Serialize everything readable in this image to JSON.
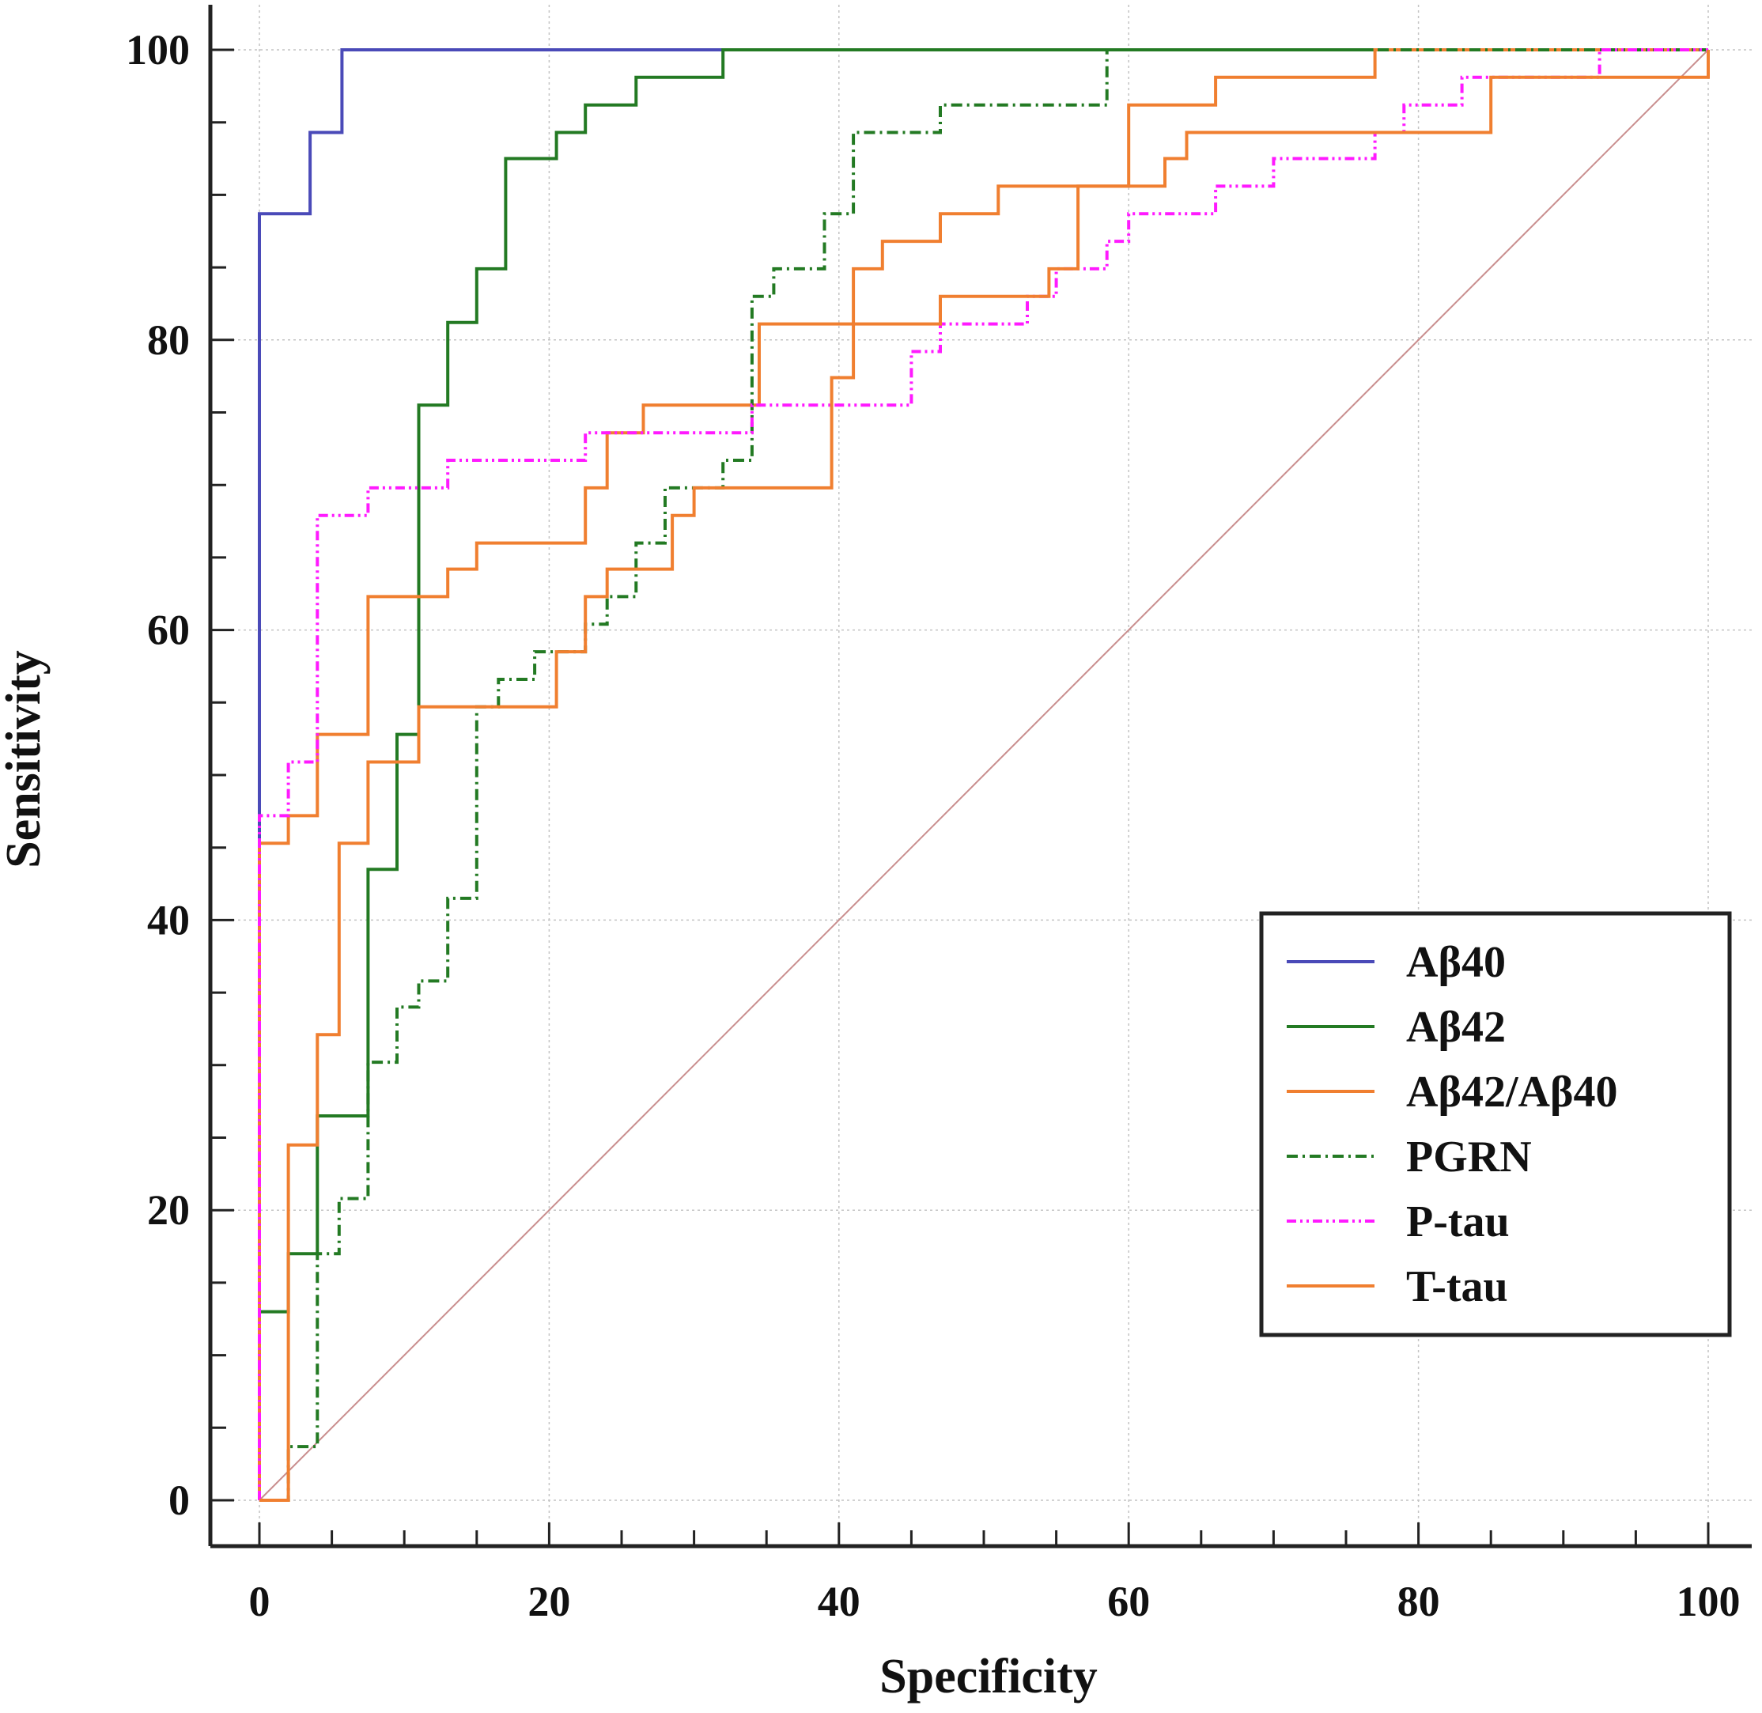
{
  "chart_data": {
    "type": "line",
    "title": "",
    "xlabel": "Specificity",
    "ylabel": "Sensitivity",
    "xlim": [
      0,
      100
    ],
    "ylim": [
      0,
      100
    ],
    "xticks": [
      0,
      20,
      40,
      60,
      80,
      100
    ],
    "yticks": [
      0,
      20,
      40,
      60,
      80,
      100
    ],
    "xtick_labels": [
      "0",
      "20",
      "40",
      "60",
      "80",
      "100"
    ],
    "ytick_labels": [
      "0",
      "20",
      "40",
      "60",
      "80",
      "100"
    ],
    "minor_step": 5,
    "grid": true,
    "legend_position": "bottom-right",
    "reference_line": {
      "name": "reference-diagonal",
      "x": [
        0,
        100
      ],
      "y": [
        0,
        100
      ],
      "color": "#c98e8e"
    },
    "series": [
      {
        "name": "Aβ40",
        "color": "#4a4ab8",
        "dash": "solid",
        "x": [
          0,
          0,
          3.5,
          3.5,
          5.7,
          5.7,
          100
        ],
        "y": [
          0,
          88.7,
          88.7,
          94.3,
          94.3,
          100,
          100
        ]
      },
      {
        "name": "Aβ42",
        "color": "#237a23",
        "dash": "solid",
        "x": [
          0,
          0,
          2,
          2,
          4,
          4,
          7.5,
          7.5,
          9.5,
          9.5,
          11,
          11,
          13,
          13,
          15,
          15,
          17,
          17,
          20.5,
          20.5,
          22.5,
          22.5,
          26,
          26,
          32,
          32,
          100
        ],
        "y": [
          0,
          13,
          13,
          17,
          17,
          26.5,
          26.5,
          43.5,
          43.5,
          52.8,
          52.8,
          75.5,
          75.5,
          81.2,
          81.2,
          84.9,
          84.9,
          92.5,
          92.5,
          94.3,
          94.3,
          96.2,
          96.2,
          98.1,
          98.1,
          100,
          100
        ]
      },
      {
        "name": "Aβ42/Aβ40",
        "color": "#f07f30",
        "dash": "solid",
        "x": [
          0,
          0,
          2,
          2,
          4,
          4,
          7.5,
          7.5,
          13,
          13,
          15,
          15,
          22.5,
          22.5,
          24,
          24,
          26.5,
          26.5,
          34.5,
          34.5,
          41,
          41,
          43,
          43,
          47,
          47,
          51,
          51,
          60,
          60,
          66,
          66,
          77,
          77,
          100
        ],
        "y": [
          0,
          45.3,
          45.3,
          47.2,
          47.2,
          52.8,
          52.8,
          62.3,
          62.3,
          64.2,
          64.2,
          66,
          66,
          69.8,
          69.8,
          73.6,
          73.6,
          75.5,
          75.5,
          81.1,
          81.1,
          84.9,
          84.9,
          86.8,
          86.8,
          88.7,
          88.7,
          90.6,
          90.6,
          96.2,
          96.2,
          98.1,
          98.1,
          100,
          100
        ]
      },
      {
        "name": "PGRN",
        "color": "#237a23",
        "dash": "dashdot",
        "x": [
          0,
          2,
          2,
          4,
          4,
          5.5,
          5.5,
          7.5,
          7.5,
          9.5,
          9.5,
          11,
          11,
          13,
          13,
          15,
          15,
          16.5,
          16.5,
          19,
          19,
          22.5,
          22.5,
          24,
          24,
          26,
          26,
          28,
          28,
          32,
          32,
          34,
          34,
          35.5,
          35.5,
          39,
          39,
          41,
          41,
          47,
          47,
          58.5,
          58.5,
          100
        ],
        "y": [
          0,
          0,
          3.7,
          3.7,
          17,
          17,
          20.8,
          20.8,
          30.2,
          30.2,
          34,
          34,
          35.8,
          35.8,
          41.5,
          41.5,
          54.7,
          54.7,
          56.6,
          56.6,
          58.5,
          58.5,
          60.4,
          60.4,
          62.3,
          62.3,
          66,
          66,
          69.8,
          69.8,
          71.7,
          71.7,
          83,
          83,
          84.9,
          84.9,
          88.7,
          88.7,
          94.3,
          94.3,
          96.2,
          96.2,
          100,
          100
        ]
      },
      {
        "name": "P-tau",
        "color": "#ff1aff",
        "dash": "dashdotdot",
        "x": [
          0,
          0,
          2,
          2,
          4,
          4,
          7.5,
          7.5,
          13,
          13,
          22.5,
          22.5,
          34,
          34,
          45,
          45,
          47,
          47,
          53,
          53,
          55,
          55,
          58.5,
          58.5,
          60,
          60,
          66,
          66,
          70,
          70,
          77,
          77,
          79,
          79,
          83,
          83,
          92.5,
          92.5,
          100
        ],
        "y": [
          0,
          47.2,
          47.2,
          50.9,
          50.9,
          67.9,
          67.9,
          69.8,
          69.8,
          71.7,
          71.7,
          73.6,
          73.6,
          75.5,
          75.5,
          79.2,
          79.2,
          81.1,
          81.1,
          83,
          83,
          84.9,
          84.9,
          86.8,
          86.8,
          88.7,
          88.7,
          90.6,
          90.6,
          92.5,
          92.5,
          94.3,
          94.3,
          96.2,
          96.2,
          98.1,
          98.1,
          100,
          100
        ]
      },
      {
        "name": "T-tau",
        "color": "#f07f30",
        "dash": "solid",
        "x": [
          0,
          0,
          2,
          2,
          4,
          4,
          5.5,
          5.5,
          7.5,
          7.5,
          11,
          11,
          20.5,
          20.5,
          22.5,
          22.5,
          24,
          24,
          28.5,
          28.5,
          30,
          30,
          32,
          32,
          39.5,
          39.5,
          41,
          41,
          47,
          47,
          54.5,
          54.5,
          56.5,
          56.5,
          62.5,
          62.5,
          64,
          64,
          85,
          85,
          100,
          100
        ],
        "y": [
          0,
          0,
          0,
          24.5,
          24.5,
          32.1,
          32.1,
          45.3,
          45.3,
          50.9,
          50.9,
          54.7,
          54.7,
          58.5,
          58.5,
          62.3,
          62.3,
          64.2,
          64.2,
          67.9,
          67.9,
          69.8,
          69.8,
          69.8,
          69.8,
          77.4,
          77.4,
          81.1,
          81.1,
          83,
          83,
          84.9,
          84.9,
          90.6,
          90.6,
          92.5,
          92.5,
          94.3,
          94.3,
          98.1,
          98.1,
          100
        ]
      }
    ]
  }
}
